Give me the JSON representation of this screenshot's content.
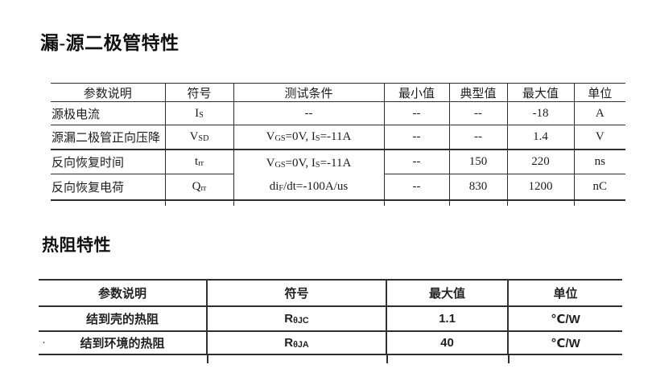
{
  "section1": {
    "title": "漏-源二极管特性",
    "table": {
      "headers": [
        "参数说明",
        "符号",
        "测试条件",
        "最小值",
        "典型值",
        "最大值",
        "单位"
      ],
      "rows": [
        {
          "param": "源极电流",
          "symbol": [
            [
              "I"
            ],
            [
              "S",
              "sub"
            ]
          ],
          "condition": [
            [
              "--"
            ]
          ],
          "min": "--",
          "typ": "--",
          "max": "-18",
          "unit": "A"
        },
        {
          "param": "源漏二极管正向压降",
          "symbol": [
            [
              "V"
            ],
            [
              "SD",
              "sub"
            ]
          ],
          "condition": [
            [
              "V"
            ],
            [
              "GS",
              "sub"
            ],
            [
              "=0V, I"
            ],
            [
              "S",
              "sub"
            ],
            [
              "=-11A"
            ]
          ],
          "min": "--",
          "typ": "--",
          "max": "1.4",
          "unit": "V"
        },
        {
          "param": "反向恢复时间",
          "symbol": [
            [
              "t"
            ],
            [
              "rr",
              "sub"
            ]
          ],
          "condition": [
            [
              "V"
            ],
            [
              "GS",
              "sub"
            ],
            [
              "=0V, I"
            ],
            [
              "S",
              "sub"
            ],
            [
              "=-11A"
            ]
          ],
          "min": "--",
          "typ": "150",
          "max": "220",
          "unit": "ns"
        },
        {
          "param": "反向恢复电荷",
          "symbol": [
            [
              "Q"
            ],
            [
              "rr",
              "sub"
            ]
          ],
          "condition": [
            [
              "di"
            ],
            [
              "F",
              "sub"
            ],
            [
              "/dt=-100A/us"
            ]
          ],
          "min": "--",
          "typ": "830",
          "max": "1200",
          "unit": "nC"
        }
      ]
    }
  },
  "section2": {
    "title": "热阻特性",
    "table": {
      "headers": [
        "参数说明",
        "符号",
        "最大值",
        "单位"
      ],
      "rows": [
        {
          "param": "结到壳的热阻",
          "symbol": [
            [
              "R"
            ],
            [
              "θJC",
              "sub"
            ]
          ],
          "max": "1.1",
          "unit": "℃/W"
        },
        {
          "param": "结到环境的热阻",
          "symbol": [
            [
              "R"
            ],
            [
              "θJA",
              "sub"
            ]
          ],
          "max": "40",
          "unit": "℃/W"
        }
      ]
    }
  },
  "stray_dot": "·"
}
